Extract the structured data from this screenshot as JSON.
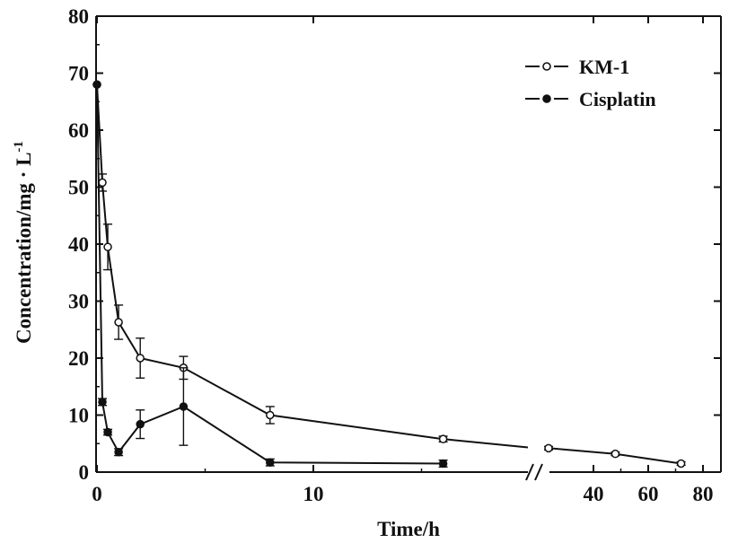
{
  "chart_data": {
    "type": "line",
    "xlabel": "Time/h",
    "ylabel": "Concentration/mg · L",
    "ylabel_sup": "-1",
    "ylim": [
      0,
      80
    ],
    "yticks": [
      "0",
      "10",
      "20",
      "30",
      "40",
      "50",
      "60",
      "70",
      "80"
    ],
    "x_axis": {
      "break": true,
      "segment1_range": [
        0,
        16
      ],
      "segment2_ticks": [
        "40",
        "60",
        "80"
      ],
      "tick_labels": [
        "0",
        "10",
        "40",
        "60",
        "80"
      ]
    },
    "grid": false,
    "legend": "top-right",
    "series": [
      {
        "name": "KM-1",
        "marker": "open-circle",
        "points": [
          {
            "x": 0,
            "y": 68,
            "err": 0
          },
          {
            "x": 0.25,
            "y": 50.8,
            "err": 1.5
          },
          {
            "x": 0.5,
            "y": 39.5,
            "err": 4
          },
          {
            "x": 1,
            "y": 26.3,
            "err": 3
          },
          {
            "x": 2,
            "y": 20,
            "err": 3.5
          },
          {
            "x": 4,
            "y": 18.3,
            "err": 2
          },
          {
            "x": 8,
            "y": 10,
            "err": 1.5
          },
          {
            "x": 16,
            "y": 5.8,
            "err": 0.5
          },
          {
            "x": 36,
            "y": 4.2,
            "err": 0.3
          },
          {
            "x": 48,
            "y": 3.2,
            "err": 0.3
          },
          {
            "x": 72,
            "y": 1.5,
            "err": 0.3
          }
        ]
      },
      {
        "name": "Cisplatin",
        "marker": "filled-circle",
        "points": [
          {
            "x": 0,
            "y": 68,
            "err": 0
          },
          {
            "x": 0.25,
            "y": 12.3,
            "err": 0.6
          },
          {
            "x": 0.5,
            "y": 7,
            "err": 0.5
          },
          {
            "x": 1,
            "y": 3.5,
            "err": 0.6
          },
          {
            "x": 2,
            "y": 8.4,
            "err": 2.5
          },
          {
            "x": 4,
            "y": 11.5,
            "err": 6.8
          },
          {
            "x": 8,
            "y": 1.7,
            "err": 0.6
          },
          {
            "x": 16,
            "y": 1.5,
            "err": 0.6
          }
        ]
      }
    ]
  }
}
